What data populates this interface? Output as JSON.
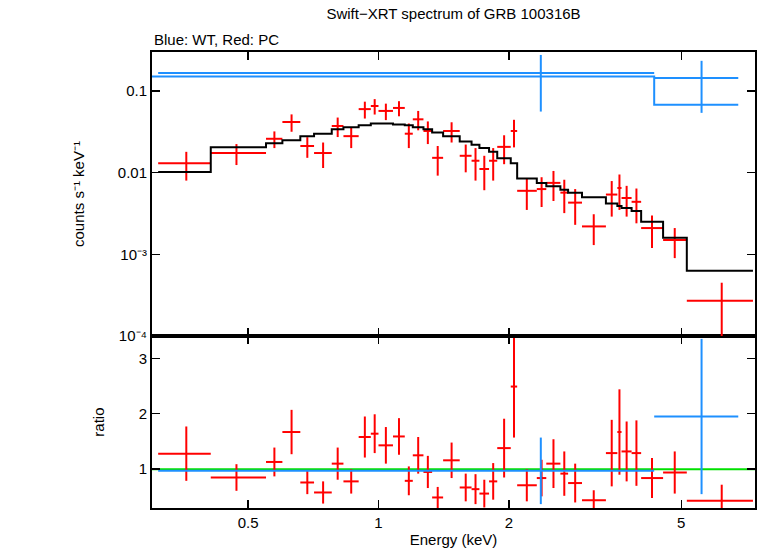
{
  "chart_data": [
    {
      "type": "scatter",
      "title": "Swift−XRT spectrum of GRB 100316B",
      "subtitle": "Blue: WT, Red: PC",
      "ylabel": "counts s⁻¹ keV⁻¹",
      "log": true,
      "tick_labels": "y",
      "xlim": [
        0.3,
        7.4
      ],
      "ylim": [
        0.0001,
        0.3
      ],
      "xticks": [
        0.5,
        1,
        2,
        5
      ],
      "yticks": [
        0.1,
        0.01,
        {
          "value": 0.001,
          "label": "10⁻³"
        },
        {
          "value": 0.0001,
          "label": "10⁻⁴"
        }
      ],
      "series": [
        {
          "type": "scatter",
          "color": "#ff0000",
          "x": [
            0.36,
            0.47,
            0.575,
            0.63,
            0.685,
            0.745,
            0.805,
            0.865,
            0.93,
            0.98,
            1.04,
            1.115,
            1.175,
            1.235,
            1.3,
            1.37,
            1.475,
            1.59,
            1.675,
            1.755,
            1.84,
            1.95,
            2.055,
            2.2,
            2.38,
            2.535,
            2.685,
            2.845,
            3.14,
            3.455,
            3.6,
            3.74,
            3.94,
            4.28,
            4.83,
            6.2
          ],
          "x_lo": [
            0.31,
            0.41,
            0.55,
            0.6,
            0.66,
            0.71,
            0.78,
            0.83,
            0.9,
            0.96,
            1.0,
            1.08,
            1.15,
            1.2,
            1.27,
            1.33,
            1.41,
            1.54,
            1.64,
            1.71,
            1.8,
            1.88,
            2.02,
            2.09,
            2.32,
            2.44,
            2.63,
            2.74,
            2.95,
            3.35,
            3.56,
            3.64,
            3.84,
            4.04,
            4.54,
            5.15
          ],
          "x_hi": [
            0.41,
            0.55,
            0.6,
            0.66,
            0.71,
            0.78,
            0.83,
            0.9,
            0.96,
            1.0,
            1.08,
            1.15,
            1.2,
            1.27,
            1.33,
            1.41,
            1.54,
            1.64,
            1.71,
            1.8,
            1.88,
            2.02,
            2.09,
            2.32,
            2.44,
            2.63,
            2.74,
            2.95,
            3.35,
            3.56,
            3.64,
            3.84,
            4.04,
            4.54,
            5.15,
            7.32
          ],
          "values": [
            0.013,
            0.0174,
            0.026,
            0.0417,
            0.0212,
            0.0174,
            0.0373,
            0.028,
            0.06,
            0.0655,
            0.057,
            0.062,
            0.03,
            0.045,
            0.0324,
            0.0152,
            0.0324,
            0.0161,
            0.014,
            0.0111,
            0.014,
            0.0207,
            0.0324,
            0.006,
            0.0063,
            0.0075,
            0.0057,
            0.0043,
            0.0022,
            0.0054,
            0.0065,
            0.0049,
            0.0044,
            0.0021,
            0.0015,
            0.00027
          ],
          "errors": [
            0.005,
            0.005,
            0.006,
            0.01,
            0.006,
            0.006,
            0.01,
            0.008,
            0.014,
            0.014,
            0.013,
            0.013,
            0.01,
            0.012,
            0.01,
            0.006,
            0.009,
            0.006,
            0.006,
            0.005,
            0.006,
            0.008,
            0.012,
            0.0025,
            0.0025,
            0.003,
            0.0025,
            0.002,
            0.0009,
            0.0025,
            0.003,
            0.002,
            0.002,
            0.0009,
            0.0006,
            0.00018
          ]
        },
        {
          "type": "scatter",
          "color": "#1e90ff",
          "x": [
            2.37,
            5.57
          ],
          "x_lo": [
            0.31,
            4.33
          ],
          "x_hi": [
            4.33,
            6.77
          ],
          "values": [
            0.166,
            0.144
          ],
          "errors": [
            0.11,
            0.09
          ]
        },
        {
          "type": "line",
          "line_style": "step",
          "color": "#000000",
          "x_lo": [
            0.31,
            0.41,
            0.55,
            0.6,
            0.66,
            0.71,
            0.78,
            0.83,
            0.9,
            0.96,
            1.0,
            1.08,
            1.15,
            1.2,
            1.27,
            1.33,
            1.41,
            1.54,
            1.64,
            1.71,
            1.8,
            1.88,
            2.02,
            2.09,
            2.32,
            2.44,
            2.63,
            2.74,
            2.95,
            3.35,
            3.56,
            3.64,
            3.84,
            4.04,
            4.54,
            5.15
          ],
          "x_hi": [
            0.41,
            0.55,
            0.6,
            0.66,
            0.71,
            0.78,
            0.83,
            0.9,
            0.96,
            1.0,
            1.08,
            1.15,
            1.2,
            1.27,
            1.33,
            1.41,
            1.54,
            1.64,
            1.71,
            1.8,
            1.88,
            2.02,
            2.09,
            2.32,
            2.44,
            2.63,
            2.74,
            2.95,
            3.35,
            3.56,
            3.64,
            3.84,
            4.04,
            4.54,
            5.15,
            7.32
          ],
          "values": [
            0.0102,
            0.0205,
            0.023,
            0.025,
            0.028,
            0.03,
            0.034,
            0.036,
            0.038,
            0.04,
            0.04,
            0.039,
            0.038,
            0.036,
            0.034,
            0.031,
            0.028,
            0.024,
            0.022,
            0.02,
            0.018,
            0.015,
            0.013,
            0.0085,
            0.0075,
            0.0068,
            0.0062,
            0.0057,
            0.005,
            0.0042,
            0.0039,
            0.0037,
            0.0034,
            0.0025,
            0.0016,
            0.00063
          ]
        },
        {
          "type": "line",
          "line_style": "step",
          "color": "#1e90ff",
          "x_lo": [
            0.3,
            4.33
          ],
          "x_hi": [
            4.33,
            6.77
          ],
          "values": [
            0.15,
            0.068
          ]
        }
      ]
    },
    {
      "type": "scatter",
      "xlabel": "Energy (keV)",
      "ylabel": "ratio",
      "log": "x",
      "xlim": [
        0.3,
        7.4
      ],
      "ylim": [
        0.3,
        3.4
      ],
      "xticks": [
        0.5,
        1,
        2,
        5
      ],
      "yticks": [
        1,
        2,
        3
      ],
      "series": [
        {
          "type": "line",
          "color": "#00e000",
          "x": [
            0.3,
            7.4
          ],
          "values": [
            1,
            1
          ]
        },
        {
          "type": "scatter",
          "color": "#ff0000",
          "x": [
            0.36,
            0.47,
            0.575,
            0.63,
            0.685,
            0.745,
            0.805,
            0.865,
            0.93,
            0.98,
            1.04,
            1.115,
            1.175,
            1.235,
            1.3,
            1.37,
            1.475,
            1.59,
            1.675,
            1.755,
            1.84,
            1.95,
            2.055,
            2.2,
            2.38,
            2.535,
            2.685,
            2.845,
            3.14,
            3.455,
            3.6,
            3.74,
            3.94,
            4.28,
            4.83,
            6.2
          ],
          "x_lo": [
            0.31,
            0.41,
            0.55,
            0.6,
            0.66,
            0.71,
            0.78,
            0.83,
            0.9,
            0.96,
            1.0,
            1.08,
            1.15,
            1.2,
            1.27,
            1.33,
            1.41,
            1.54,
            1.64,
            1.71,
            1.8,
            1.88,
            2.02,
            2.09,
            2.32,
            2.44,
            2.63,
            2.74,
            2.95,
            3.35,
            3.56,
            3.64,
            3.84,
            4.04,
            4.54,
            5.15
          ],
          "x_hi": [
            0.41,
            0.55,
            0.6,
            0.66,
            0.71,
            0.78,
            0.83,
            0.9,
            0.96,
            1.0,
            1.08,
            1.15,
            1.2,
            1.27,
            1.33,
            1.41,
            1.54,
            1.64,
            1.71,
            1.8,
            1.88,
            2.02,
            2.09,
            2.32,
            2.44,
            2.63,
            2.74,
            2.95,
            3.35,
            3.56,
            3.64,
            3.84,
            4.04,
            4.54,
            5.15,
            7.32
          ],
          "values": [
            1.28,
            0.85,
            1.13,
            1.67,
            0.76,
            0.58,
            1.1,
            0.78,
            1.58,
            1.64,
            1.43,
            1.59,
            0.79,
            1.25,
            0.95,
            0.49,
            1.16,
            0.67,
            0.64,
            0.56,
            0.78,
            1.38,
            2.49,
            0.71,
            0.84,
            1.1,
            0.92,
            0.75,
            0.44,
            1.29,
            1.67,
            1.32,
            1.29,
            0.84,
            0.94,
            0.43
          ],
          "errors": [
            0.49,
            0.24,
            0.26,
            0.4,
            0.21,
            0.2,
            0.29,
            0.22,
            0.37,
            0.35,
            0.33,
            0.33,
            0.26,
            0.33,
            0.29,
            0.19,
            0.32,
            0.25,
            0.27,
            0.25,
            0.33,
            0.53,
            0.92,
            0.29,
            0.33,
            0.44,
            0.4,
            0.35,
            0.18,
            0.6,
            0.77,
            0.54,
            0.59,
            0.36,
            0.38,
            0.29
          ]
        },
        {
          "type": "scatter",
          "color": "#1e90ff",
          "x": [
            2.37,
            5.57
          ],
          "x_lo": [
            0.31,
            4.33
          ],
          "x_hi": [
            4.33,
            6.77
          ],
          "values": [
            0.97,
            1.95
          ],
          "errors": [
            0.6,
            1.4
          ]
        }
      ]
    }
  ]
}
